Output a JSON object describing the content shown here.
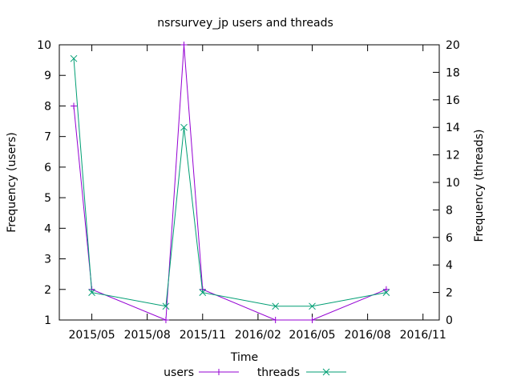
{
  "chart_data": {
    "type": "line",
    "title": "nsrsurvey_jp users and threads",
    "xlabel": "Time",
    "ylabel": "Frequency (users)",
    "y2label": "Frequency (threads)",
    "xlim": [
      "2015-03-08",
      "2016-11-28"
    ],
    "ylim": [
      1,
      10
    ],
    "y2lim": [
      0,
      20
    ],
    "x_ticks": [
      "2015/05",
      "2015/08",
      "2015/11",
      "2016/02",
      "2016/05",
      "2016/08",
      "2016/11"
    ],
    "x_tick_dates": [
      "2015-05-01",
      "2015-08-01",
      "2015-11-01",
      "2016-02-01",
      "2016-05-01",
      "2016-08-01",
      "2016-11-01"
    ],
    "y_ticks": [
      1,
      2,
      3,
      4,
      5,
      6,
      7,
      8,
      9,
      10
    ],
    "y2_ticks": [
      0,
      2,
      4,
      6,
      8,
      10,
      12,
      14,
      16,
      18,
      20
    ],
    "grid": false,
    "legend_position": "bottom",
    "series": [
      {
        "name": "users",
        "axis": "y",
        "color": "#9400d3",
        "marker": "plus",
        "points": [
          {
            "x": "2015-04-01",
            "y": 8
          },
          {
            "x": "2015-05-01",
            "y": 2
          },
          {
            "x": "2015-09-01",
            "y": 1
          },
          {
            "x": "2015-10-01",
            "y": 10
          },
          {
            "x": "2015-11-01",
            "y": 2
          },
          {
            "x": "2016-03-01",
            "y": 1
          },
          {
            "x": "2016-05-01",
            "y": 1
          },
          {
            "x": "2016-09-01",
            "y": 2
          }
        ]
      },
      {
        "name": "threads",
        "axis": "y2",
        "color": "#009e73",
        "marker": "cross",
        "points": [
          {
            "x": "2015-04-01",
            "y": 19
          },
          {
            "x": "2015-05-01",
            "y": 2
          },
          {
            "x": "2015-09-01",
            "y": 1
          },
          {
            "x": "2015-10-01",
            "y": 14
          },
          {
            "x": "2015-11-01",
            "y": 2
          },
          {
            "x": "2016-03-01",
            "y": 1
          },
          {
            "x": "2016-05-01",
            "y": 1
          },
          {
            "x": "2016-09-01",
            "y": 2
          }
        ]
      }
    ]
  }
}
